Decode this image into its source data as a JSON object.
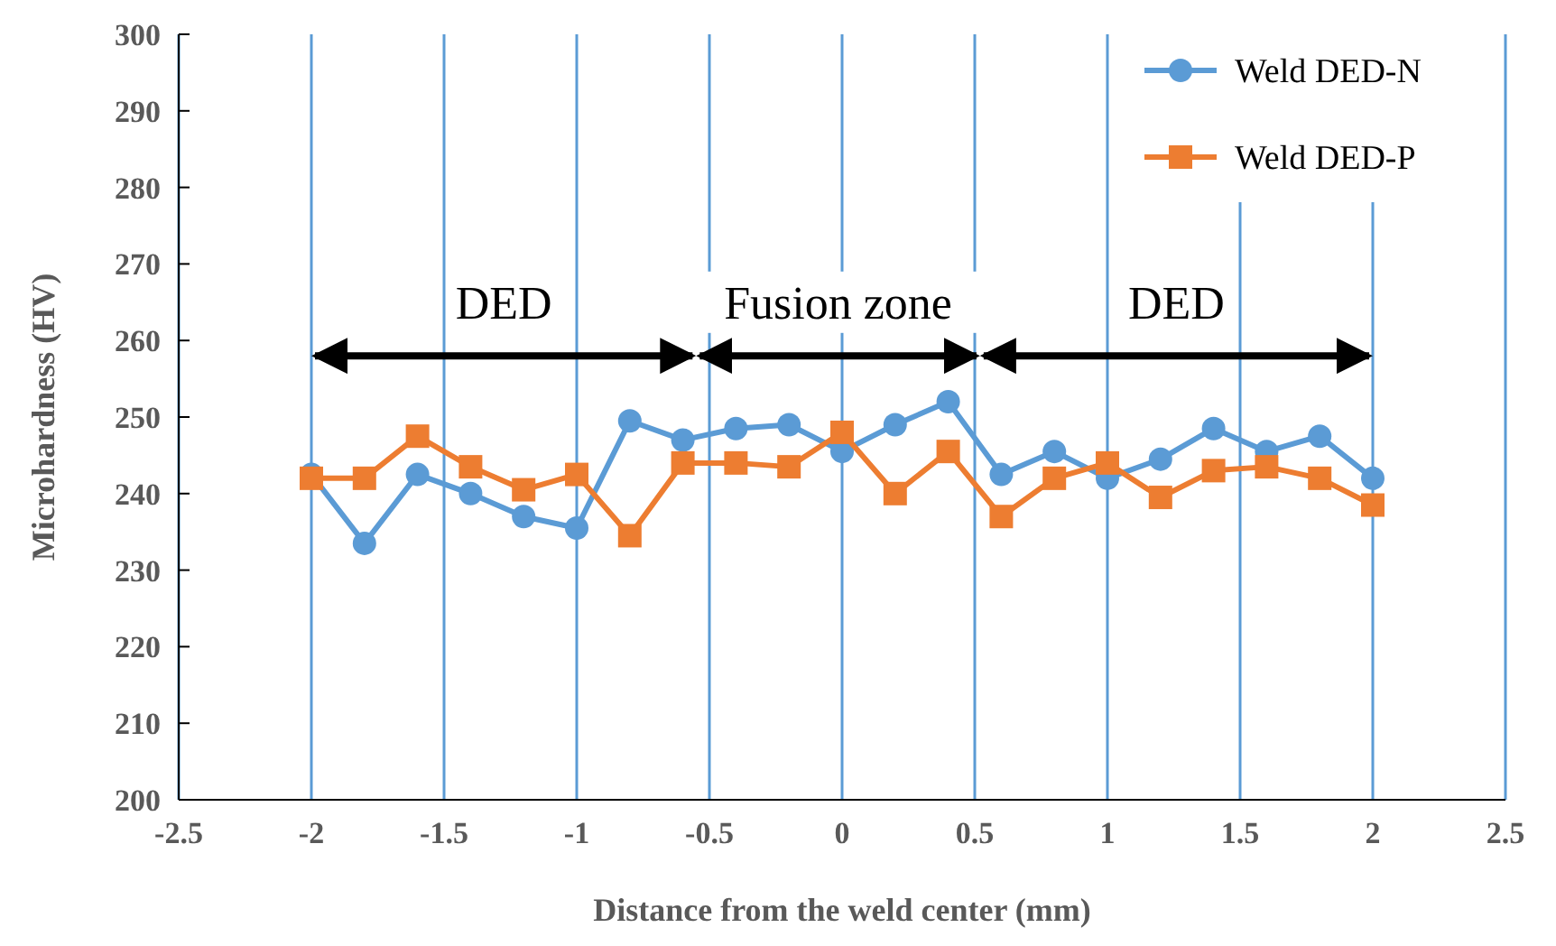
{
  "chart_data": {
    "type": "line",
    "xlabel": "Distance from the weld center (mm)",
    "ylabel": "Microhardness (HV)",
    "x": [
      -2,
      -1.8,
      -1.6,
      -1.4,
      -1.2,
      -1,
      -0.8,
      -0.6,
      -0.4,
      -0.2,
      0,
      0.2,
      0.4,
      0.6,
      0.8,
      1,
      1.2,
      1.4,
      1.6,
      1.8,
      2
    ],
    "series": [
      {
        "name": "Weld DED-N",
        "color": "#5b9bd5",
        "marker": "circle",
        "values": [
          242.5,
          233.5,
          242.5,
          240,
          237,
          235.5,
          249.5,
          247,
          248.5,
          249,
          245.5,
          249,
          252,
          242.5,
          245.5,
          242,
          244.5,
          248.5,
          245.5,
          247.5,
          242
        ]
      },
      {
        "name": "Weld DED-P",
        "color": "#ed7d31",
        "marker": "square",
        "values": [
          242,
          242,
          247.5,
          243.5,
          240.5,
          242.5,
          234.5,
          244,
          244,
          243.5,
          248,
          240,
          245.5,
          237,
          242,
          244,
          239.5,
          243,
          243.5,
          242,
          238.5
        ]
      }
    ],
    "xlim": [
      -2.5,
      2.5
    ],
    "xticks": [
      -2.5,
      -2,
      -1.5,
      -1,
      -0.5,
      0,
      0.5,
      1,
      1.5,
      2,
      2.5
    ],
    "ylim": [
      200,
      300
    ],
    "yticks": [
      200,
      210,
      220,
      230,
      240,
      250,
      260,
      270,
      280,
      290,
      300
    ],
    "grid": "x",
    "legend": "top right",
    "annotations": [
      "DED",
      "Fusion zone",
      "DED"
    ]
  }
}
